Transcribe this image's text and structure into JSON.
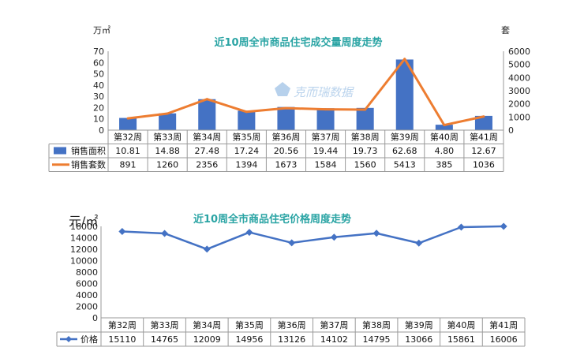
{
  "chart_data": [
    {
      "type": "bar",
      "title": "近10周全市商品住宅成交量周度走势",
      "categories": [
        "第32周",
        "第33周",
        "第34周",
        "第35周",
        "第36周",
        "第37周",
        "第38周",
        "第39周",
        "第40周",
        "第41周"
      ],
      "left_unit": "万㎡",
      "right_unit": "套",
      "ylim": [
        0,
        70
      ],
      "yticks": [
        0,
        10,
        20,
        30,
        40,
        50,
        60,
        70
      ],
      "y2lim": [
        0,
        6000
      ],
      "y2ticks": [
        0,
        1000,
        2000,
        3000,
        4000,
        5000,
        6000
      ],
      "watermark": "克而瑞数据",
      "series": [
        {
          "name": "销售面积",
          "type": "bar",
          "axis": "left",
          "color": "#4472C4",
          "values": [
            10.81,
            14.88,
            27.48,
            17.24,
            20.56,
            19.44,
            19.73,
            62.68,
            4.8,
            12.67
          ]
        },
        {
          "name": "销售套数",
          "type": "line",
          "axis": "right",
          "color": "#ED7D31",
          "values": [
            891,
            1260,
            2356,
            1394,
            1673,
            1584,
            1560,
            5413,
            385,
            1036
          ]
        }
      ]
    },
    {
      "type": "line",
      "title": "近10周全市商品住宅价格周度走势",
      "categories": [
        "第32周",
        "第33周",
        "第34周",
        "第35周",
        "第36周",
        "第37周",
        "第38周",
        "第39周",
        "第40周",
        "第41周"
      ],
      "left_unit": "元/㎡",
      "ylim": [
        0,
        16000
      ],
      "yticks": [
        0,
        2000,
        4000,
        6000,
        8000,
        10000,
        12000,
        14000,
        16000
      ],
      "series": [
        {
          "name": "价格",
          "type": "line",
          "color": "#4472C4",
          "values": [
            15110,
            14765,
            12009,
            14956,
            13126,
            14102,
            14795,
            13066,
            15861,
            16006
          ]
        }
      ]
    }
  ],
  "colors": {
    "title": "#2AA4A4",
    "bar": "#4472C4",
    "line_orange": "#ED7D31",
    "line_blue": "#4472C4",
    "watermark": "#9FC2E6"
  }
}
